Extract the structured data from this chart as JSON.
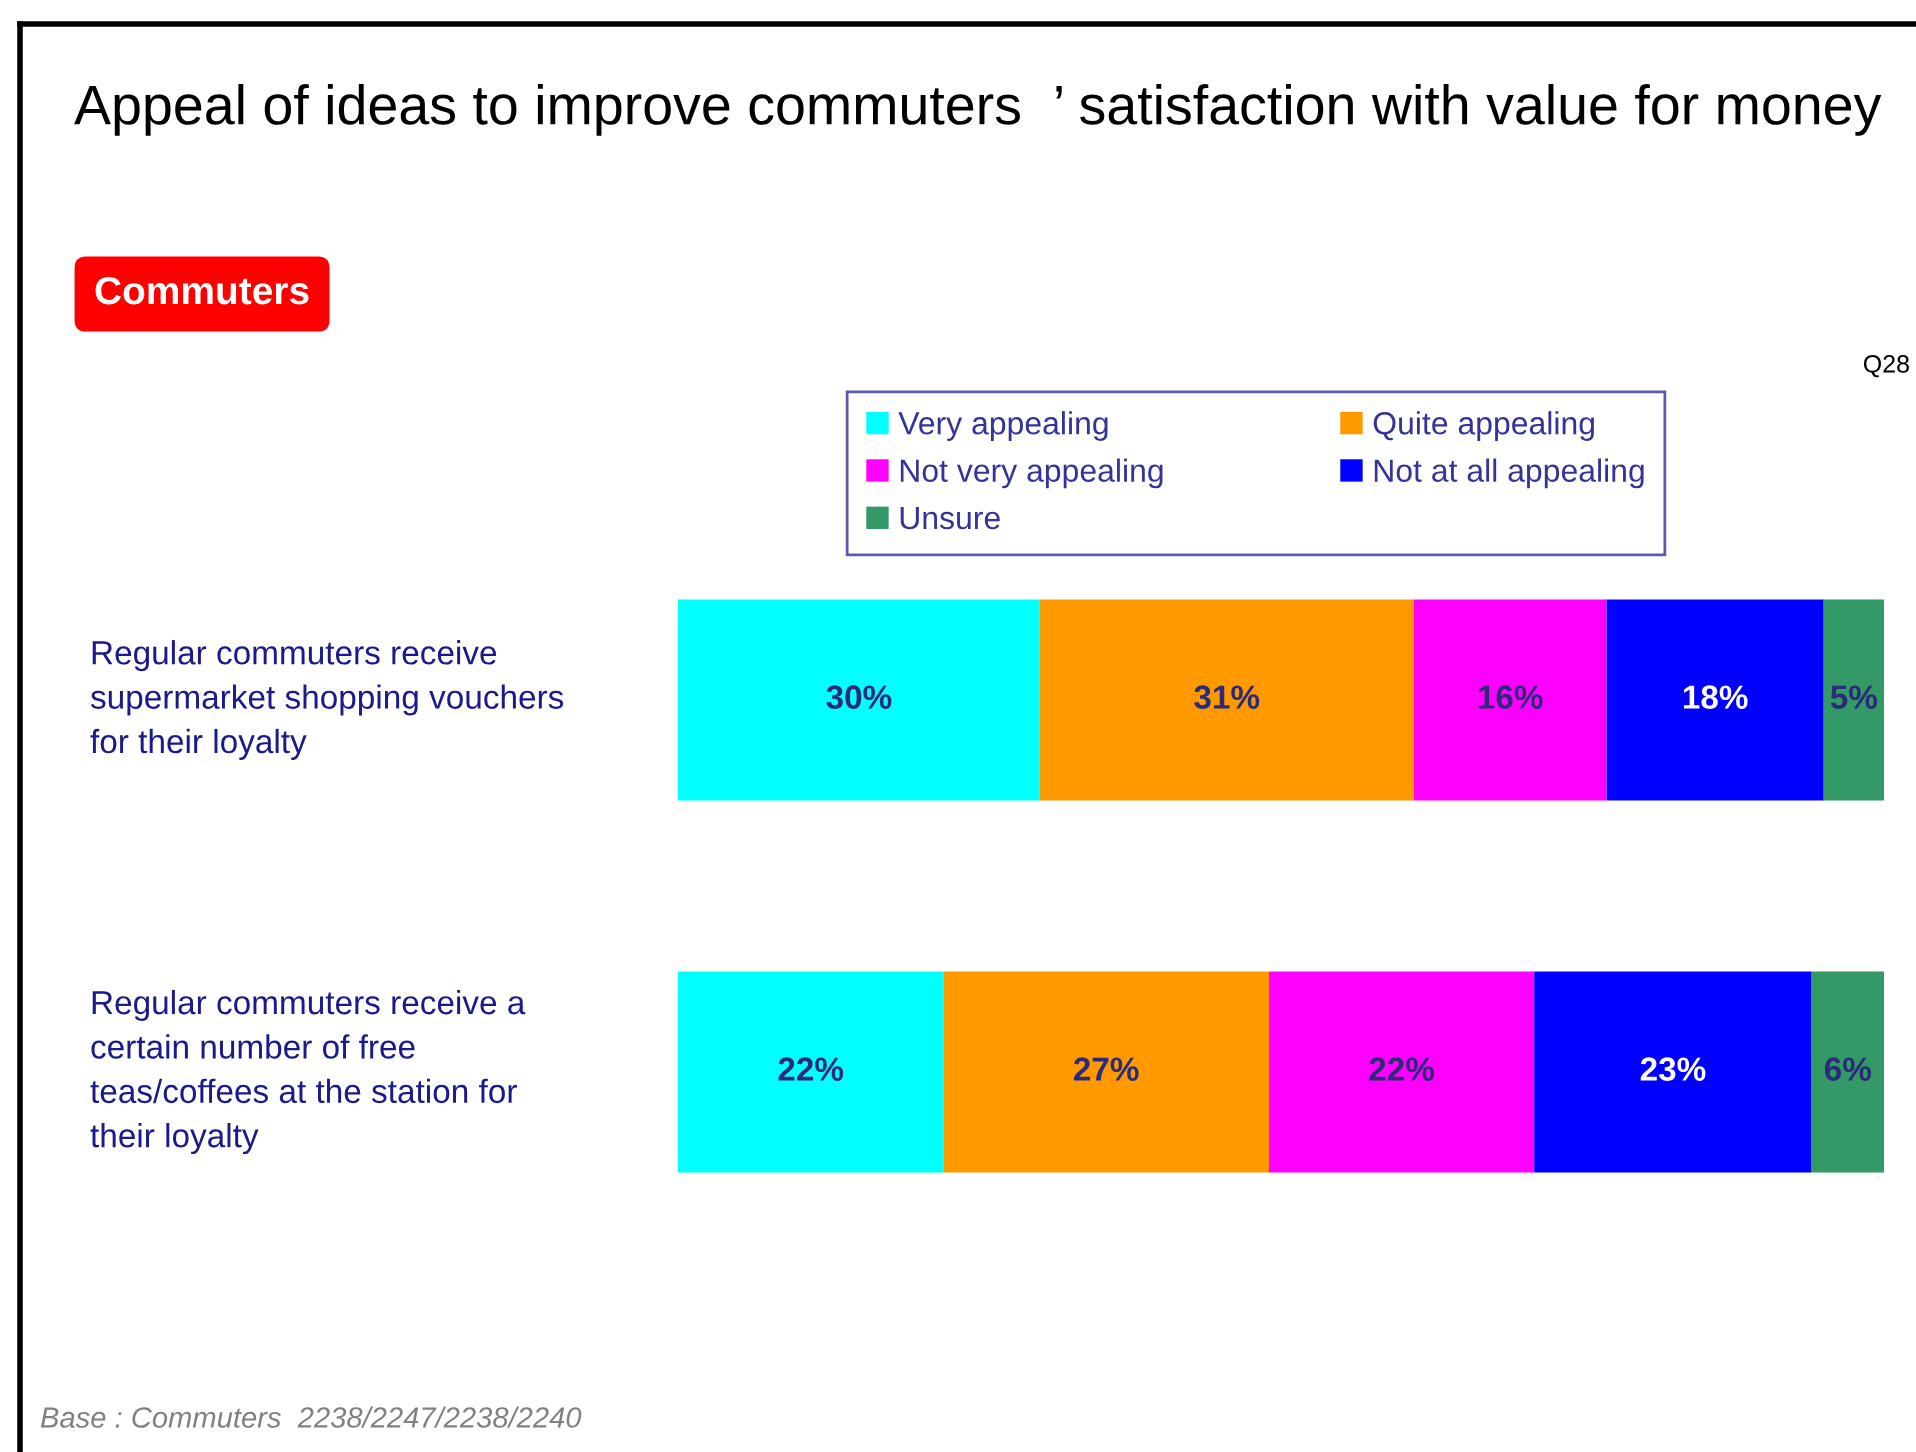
{
  "chart_data": {
    "type": "bar",
    "orientation": "horizontal",
    "stacked": true,
    "title": "Appeal of ideas to improve commuters  ’ satisfaction with value for money",
    "subtitle": "Commuters",
    "categories": [
      "Regular commuters receive\nsupermarket shopping vouchers\nfor their loyalty",
      "Regular commuters receive a\ncertain number of free\nteas/coffees at the station for\ntheir loyalty"
    ],
    "series": [
      {
        "name": "Very appealing",
        "color": "#00ffff",
        "values": [
          30,
          22
        ],
        "value_labels": [
          "30%",
          "22%"
        ]
      },
      {
        "name": "Quite appealing",
        "color": "#ff9900",
        "values": [
          31,
          27
        ],
        "value_labels": [
          "31%",
          "27%"
        ]
      },
      {
        "name": "Not very appealing",
        "color": "#ff00ff",
        "values": [
          16,
          22
        ],
        "value_labels": [
          "16%",
          "22%"
        ]
      },
      {
        "name": "Not at all appealing",
        "color": "#0000ff",
        "values": [
          18,
          23
        ],
        "value_labels": [
          "18%",
          "23%"
        ]
      },
      {
        "name": "Unsure",
        "color": "#339966",
        "values": [
          5,
          6
        ],
        "value_labels": [
          "5%",
          "6%"
        ]
      }
    ],
    "xlim": [
      0,
      100
    ],
    "tick_labels": "y",
    "legend": "top",
    "annotations": [
      "Q28",
      "Base : Commuters  2238/2247/2238/2240"
    ]
  }
}
